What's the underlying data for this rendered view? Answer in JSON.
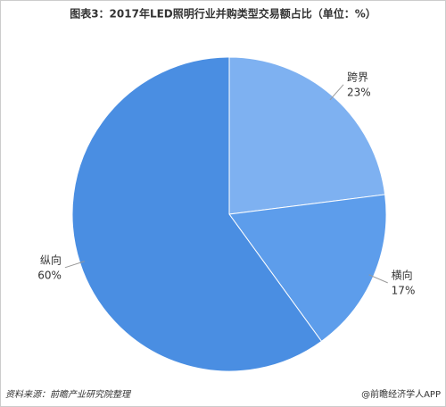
{
  "chart_data": {
    "type": "pie",
    "title": "图表3：2017年LED照明行业并购类型交易额占比（单位：%）",
    "categories": [
      "跨界",
      "横向",
      "纵向"
    ],
    "values": [
      23,
      17,
      60
    ],
    "value_labels": [
      "23%",
      "17%",
      "60%"
    ],
    "colors": [
      "#7eb1f1",
      "#5d9deb",
      "#4a8ee2"
    ],
    "source": "资料来源：前瞻产业研究院整理",
    "credit": "@前瞻经济学人APP"
  }
}
